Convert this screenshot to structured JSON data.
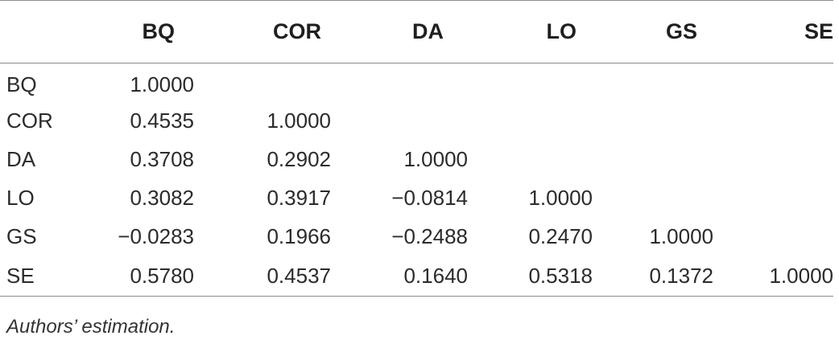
{
  "table": {
    "columns": [
      "",
      "BQ",
      "COR",
      "DA",
      "LO",
      "GS",
      "SE"
    ],
    "rows": [
      {
        "label": "BQ",
        "values": [
          "1.0000",
          "",
          "",
          "",
          "",
          ""
        ]
      },
      {
        "label": "COR",
        "values": [
          "0.4535",
          "1.0000",
          "",
          "",
          "",
          ""
        ]
      },
      {
        "label": "DA",
        "values": [
          "0.3708",
          "0.2902",
          "1.0000",
          "",
          "",
          ""
        ]
      },
      {
        "label": "LO",
        "values": [
          "0.3082",
          "0.3917",
          "−0.0814",
          "1.0000",
          "",
          ""
        ]
      },
      {
        "label": "GS",
        "values": [
          "−0.0283",
          "0.1966",
          "−0.2488",
          "0.2470",
          "1.0000",
          ""
        ]
      },
      {
        "label": "SE",
        "values": [
          "0.5780",
          "0.4537",
          "0.1640",
          "0.5318",
          "0.1372",
          "1.0000"
        ]
      }
    ]
  },
  "note": "Authors’ estimation."
}
